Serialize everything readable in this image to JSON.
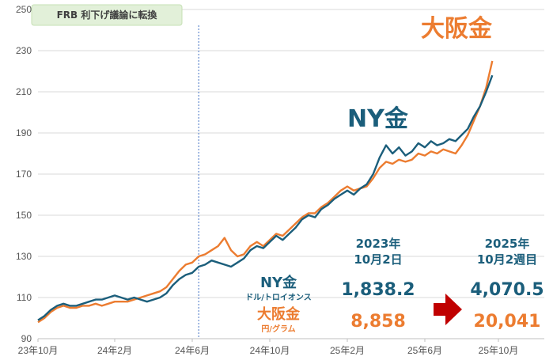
{
  "chart_data": {
    "type": "line",
    "y_ticks": [
      "90",
      "110",
      "130",
      "150",
      "170",
      "190",
      "210",
      "230",
      "250"
    ],
    "ylim": [
      90,
      250
    ],
    "x_ticks": [
      "23年10月",
      "24年2月",
      "24年6月",
      "24年10月",
      "25年2月",
      "25年6月",
      "25年10月"
    ],
    "grid": "horizontal",
    "annotation": {
      "label": "FRB 利下げ議論に転換",
      "x_index": 12.5
    },
    "series": [
      {
        "name": "NY金",
        "color": "#1b5e7b",
        "values": [
          [
            0,
            99
          ],
          [
            0.5,
            101
          ],
          [
            1,
            104
          ],
          [
            1.5,
            106
          ],
          [
            2,
            107
          ],
          [
            2.5,
            106
          ],
          [
            3,
            106
          ],
          [
            3.5,
            107
          ],
          [
            4,
            108
          ],
          [
            4.5,
            109
          ],
          [
            5,
            109
          ],
          [
            5.5,
            110
          ],
          [
            6,
            111
          ],
          [
            6.5,
            110
          ],
          [
            7,
            109
          ],
          [
            7.5,
            110
          ],
          [
            8,
            109
          ],
          [
            8.5,
            108
          ],
          [
            9,
            109
          ],
          [
            9.5,
            110
          ],
          [
            10,
            112
          ],
          [
            10.5,
            116
          ],
          [
            11,
            119
          ],
          [
            11.5,
            121
          ],
          [
            12,
            122
          ],
          [
            12.5,
            125
          ],
          [
            13,
            126
          ],
          [
            13.5,
            128
          ],
          [
            14,
            127
          ],
          [
            14.5,
            126
          ],
          [
            15,
            125
          ],
          [
            15.5,
            127
          ],
          [
            16,
            129
          ],
          [
            16.5,
            133
          ],
          [
            17,
            135
          ],
          [
            17.5,
            134
          ],
          [
            18,
            137
          ],
          [
            18.5,
            140
          ],
          [
            19,
            138
          ],
          [
            19.5,
            141
          ],
          [
            20,
            144
          ],
          [
            20.5,
            148
          ],
          [
            21,
            150
          ],
          [
            21.5,
            149
          ],
          [
            22,
            153
          ],
          [
            22.5,
            155
          ],
          [
            23,
            158
          ],
          [
            23.5,
            160
          ],
          [
            24,
            162
          ],
          [
            24.5,
            160
          ],
          [
            25,
            163
          ],
          [
            25.5,
            165
          ],
          [
            26,
            170
          ],
          [
            26.5,
            178
          ],
          [
            27,
            184
          ],
          [
            27.5,
            180
          ],
          [
            28,
            183
          ],
          [
            28.5,
            179
          ],
          [
            29,
            181
          ],
          [
            29.5,
            185
          ],
          [
            30,
            183
          ],
          [
            30.5,
            186
          ],
          [
            31,
            184
          ],
          [
            31.5,
            185
          ],
          [
            32,
            187
          ],
          [
            32.5,
            186
          ],
          [
            33,
            189
          ],
          [
            33.5,
            192
          ],
          [
            34,
            198
          ],
          [
            34.5,
            203
          ],
          [
            35,
            210
          ],
          [
            35.5,
            218
          ]
        ]
      },
      {
        "name": "大阪金",
        "color": "#ec7c30",
        "values": [
          [
            0,
            98
          ],
          [
            0.5,
            100
          ],
          [
            1,
            103
          ],
          [
            1.5,
            105
          ],
          [
            2,
            106
          ],
          [
            2.5,
            105
          ],
          [
            3,
            105
          ],
          [
            3.5,
            106
          ],
          [
            4,
            106
          ],
          [
            4.5,
            107
          ],
          [
            5,
            106
          ],
          [
            5.5,
            107
          ],
          [
            6,
            108
          ],
          [
            6.5,
            108
          ],
          [
            7,
            108
          ],
          [
            7.5,
            109
          ],
          [
            8,
            110
          ],
          [
            8.5,
            111
          ],
          [
            9,
            112
          ],
          [
            9.5,
            113
          ],
          [
            10,
            115
          ],
          [
            10.5,
            119
          ],
          [
            11,
            123
          ],
          [
            11.5,
            126
          ],
          [
            12,
            127
          ],
          [
            12.5,
            130
          ],
          [
            13,
            131
          ],
          [
            13.5,
            133
          ],
          [
            14,
            135
          ],
          [
            14.5,
            139
          ],
          [
            15,
            133
          ],
          [
            15.5,
            130
          ],
          [
            16,
            131
          ],
          [
            16.5,
            135
          ],
          [
            17,
            137
          ],
          [
            17.5,
            135
          ],
          [
            18,
            138
          ],
          [
            18.5,
            141
          ],
          [
            19,
            140
          ],
          [
            19.5,
            143
          ],
          [
            20,
            146
          ],
          [
            20.5,
            149
          ],
          [
            21,
            151
          ],
          [
            21.5,
            151
          ],
          [
            22,
            154
          ],
          [
            22.5,
            156
          ],
          [
            23,
            159
          ],
          [
            23.5,
            162
          ],
          [
            24,
            164
          ],
          [
            24.5,
            162
          ],
          [
            25,
            163
          ],
          [
            25.5,
            164
          ],
          [
            26,
            168
          ],
          [
            26.5,
            173
          ],
          [
            27,
            176
          ],
          [
            27.5,
            175
          ],
          [
            28,
            177
          ],
          [
            28.5,
            176
          ],
          [
            29,
            177
          ],
          [
            29.5,
            180
          ],
          [
            30,
            179
          ],
          [
            30.5,
            181
          ],
          [
            31,
            180
          ],
          [
            31.5,
            182
          ],
          [
            32,
            181
          ],
          [
            32.5,
            180
          ],
          [
            33,
            184
          ],
          [
            33.5,
            189
          ],
          [
            34,
            196
          ],
          [
            34.5,
            203
          ],
          [
            35,
            212
          ],
          [
            35.5,
            225
          ]
        ]
      }
    ]
  },
  "labels": {
    "ny_big": "NY金",
    "osaka_big": "大阪金"
  },
  "info": {
    "col1_header_line1": "2023年",
    "col1_header_line2": "10月2日",
    "col2_header_line1": "2025年",
    "col2_header_line2": "10月2週目",
    "ny_label": "NY金",
    "ny_unit": "ドル/トロイオンス",
    "ny_value_1": "1,838.2",
    "ny_value_2": "4,070.5",
    "osaka_label": "大阪金",
    "osaka_unit": "円/グラム",
    "osaka_value_1": "8,858",
    "osaka_value_2": "20,041"
  },
  "colors": {
    "ny": "#1b5e7b",
    "osaka": "#ec7c30",
    "arrow": "#c00000"
  }
}
